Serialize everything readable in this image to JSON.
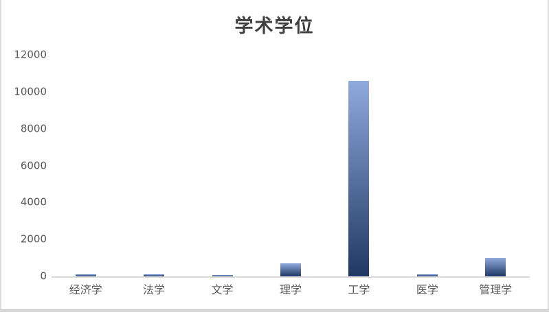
{
  "chart_data": {
    "type": "bar",
    "title": "学术学位",
    "categories": [
      "经济学",
      "法学",
      "文学",
      "理学",
      "工学",
      "医学",
      "管理学"
    ],
    "values": [
      100,
      100,
      70,
      700,
      10600,
      100,
      1000
    ],
    "xlabel": "",
    "ylabel": "",
    "ylim": [
      0,
      12000
    ],
    "yticks": [
      0,
      2000,
      4000,
      6000,
      8000,
      10000,
      12000
    ],
    "grid": false,
    "legend": "none",
    "colors": {
      "bar_gradient_top": "#8faadc",
      "bar_gradient_bottom": "#1f3864",
      "axis_line": "#d9d9d9",
      "tick_label": "#595959",
      "title": "#3f3f3f",
      "frame_border": "#d9d9d9"
    }
  }
}
